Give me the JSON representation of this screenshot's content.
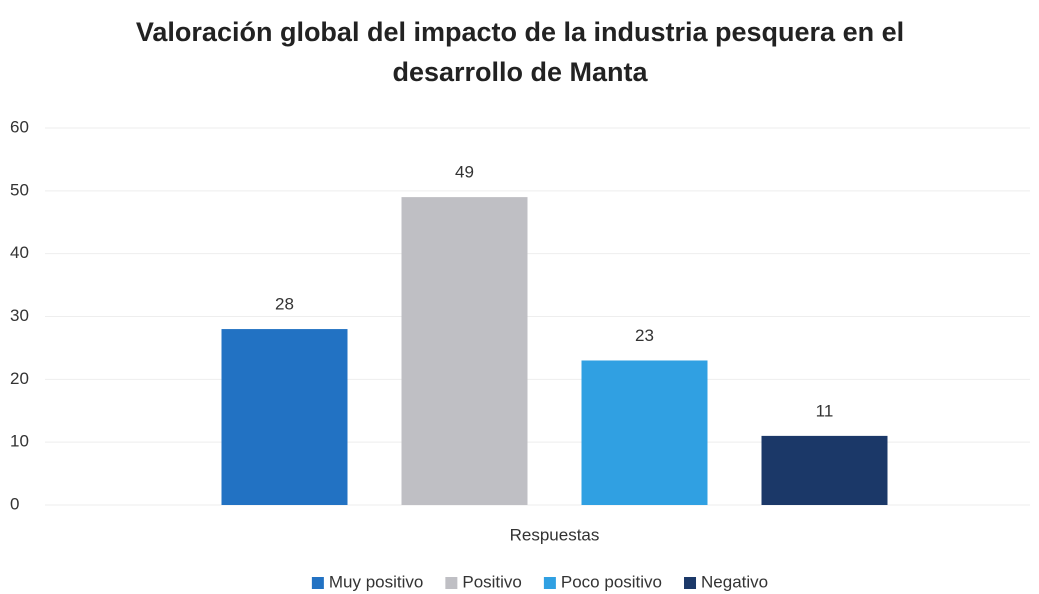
{
  "chart_data": {
    "type": "bar",
    "title": "Valoración global del impacto de la industria pesquera en el desarrollo de Manta",
    "categories": [
      "Respuestas"
    ],
    "series": [
      {
        "name": "Muy positivo",
        "color": "#2272c3",
        "values": [
          28
        ]
      },
      {
        "name": "Positivo",
        "color": "#bfbfc4",
        "values": [
          49
        ]
      },
      {
        "name": "Poco positivo",
        "color": "#30a0e2",
        "values": [
          23
        ]
      },
      {
        "name": "Negativo",
        "color": "#1b3868",
        "values": [
          11
        ]
      }
    ],
    "ylim": [
      0,
      60
    ],
    "yticks": [
      0,
      10,
      20,
      30,
      40,
      50,
      60
    ],
    "grid": true,
    "legend": "bottom"
  }
}
